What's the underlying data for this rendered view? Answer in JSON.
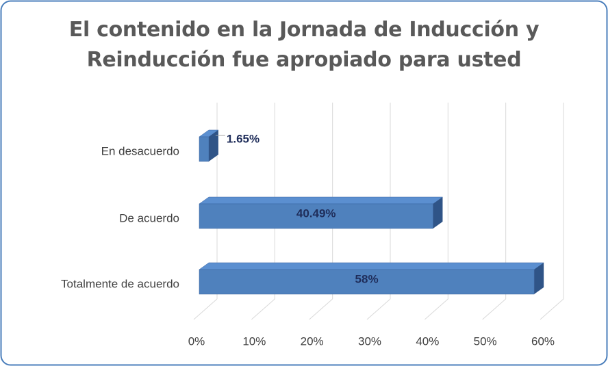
{
  "chart_data": {
    "type": "bar",
    "orientation": "horizontal",
    "title": "El contenido en la Jornada de Inducción y Reinducción fue apropiado para usted",
    "categories": [
      "En desacuerdo",
      "De acuerdo",
      "Totalmente de acuerdo"
    ],
    "values": [
      1.65,
      40.49,
      58
    ],
    "value_labels": [
      "1.65%",
      "40.49%",
      "58%"
    ],
    "color": "#4f81bd",
    "xlim": [
      0,
      60
    ],
    "xticks": [
      {
        "value": 0,
        "label": "0%"
      },
      {
        "value": 10,
        "label": "10%"
      },
      {
        "value": 20,
        "label": "20%"
      },
      {
        "value": 30,
        "label": "30%"
      },
      {
        "value": 40,
        "label": "40%"
      },
      {
        "value": 50,
        "label": "50%"
      },
      {
        "value": 60,
        "label": "60%"
      }
    ],
    "grid": true
  }
}
